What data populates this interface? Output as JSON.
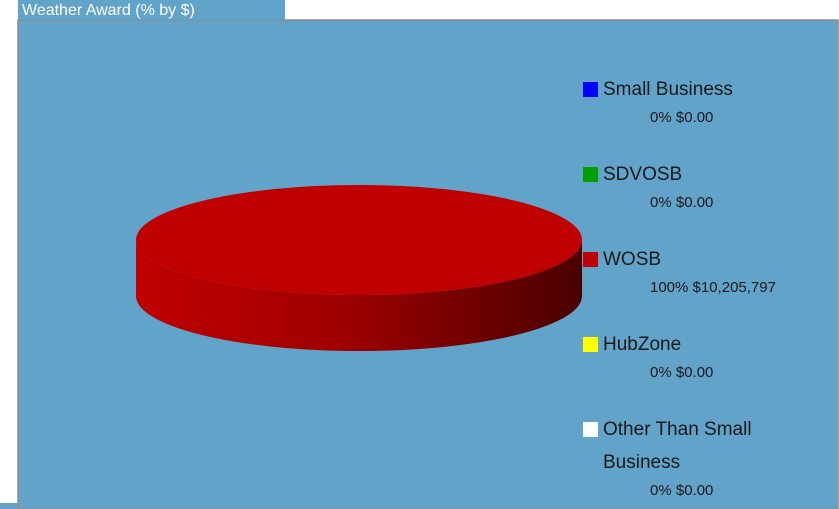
{
  "chart_data": {
    "type": "pie",
    "title": "Weather Award (% by $)",
    "categories": [
      "Small Business",
      "SDVOSB",
      "WOSB",
      "HubZone",
      "Other Than Small Business"
    ],
    "values": [
      0,
      0,
      100,
      0,
      0
    ],
    "value_labels": [
      "0% $0.00",
      "0% $0.00",
      "100% $10,205,797",
      "0% $0.00",
      "0% $0.00"
    ],
    "colors": [
      "#0000ff",
      "#00a000",
      "#c00000",
      "#ffff00",
      "#ffffff"
    ],
    "legend": "right",
    "three_d": true
  }
}
